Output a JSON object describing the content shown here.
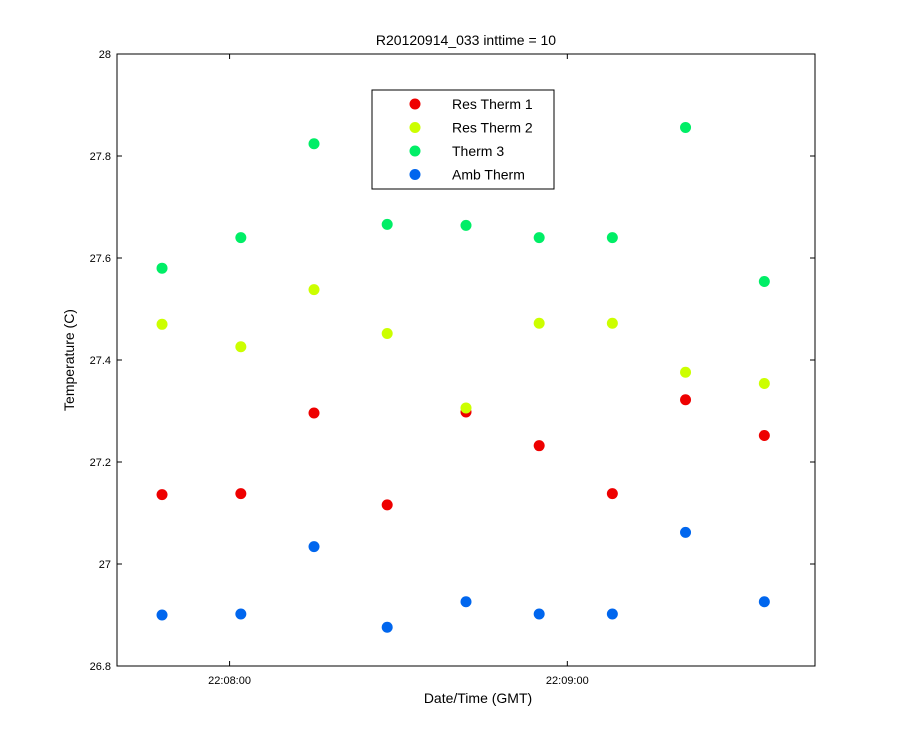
{
  "chart_data": {
    "type": "scatter",
    "title": "R20120914_033 inttime = 10",
    "xlabel": "Date/Time (GMT)",
    "ylabel": "Temperature (C)",
    "x_range": [
      "22:07:40",
      "22:09:44"
    ],
    "ylim": [
      26.8,
      28
    ],
    "y_ticks": [
      26.8,
      27,
      27.2,
      27.4,
      27.6,
      27.8,
      28
    ],
    "y_tick_labels": [
      "26.8",
      "27",
      "27.2",
      "27.4",
      "27.6",
      "27.8",
      "28"
    ],
    "x_ticks": [
      "22:08:00",
      "22:09:00"
    ],
    "x_tick_labels": [
      "22:08:00",
      "22:09:00"
    ],
    "grid": false,
    "legend_position": "top-center",
    "x": [
      "22:07:48",
      "22:08:02",
      "22:08:15",
      "22:08:28",
      "22:08:42",
      "22:08:55",
      "22:09:08",
      "22:09:21",
      "22:09:35"
    ],
    "series": [
      {
        "name": "Res Therm 1",
        "color": "#ee0000",
        "values": [
          27.136,
          27.138,
          27.296,
          27.116,
          27.298,
          27.232,
          27.138,
          27.322,
          27.252
        ]
      },
      {
        "name": "Res Therm 2",
        "color": "#ccff00",
        "values": [
          27.47,
          27.426,
          27.538,
          27.452,
          27.306,
          27.472,
          27.472,
          27.376,
          27.354
        ]
      },
      {
        "name": "Therm 3",
        "color": "#00ee66",
        "values": [
          27.58,
          27.64,
          27.824,
          27.666,
          27.664,
          27.64,
          27.64,
          27.856,
          27.554
        ]
      },
      {
        "name": "Amb Therm",
        "color": "#0066ee",
        "values": [
          26.9,
          26.902,
          27.034,
          26.876,
          26.926,
          26.902,
          26.902,
          27.062,
          26.926
        ]
      }
    ]
  }
}
